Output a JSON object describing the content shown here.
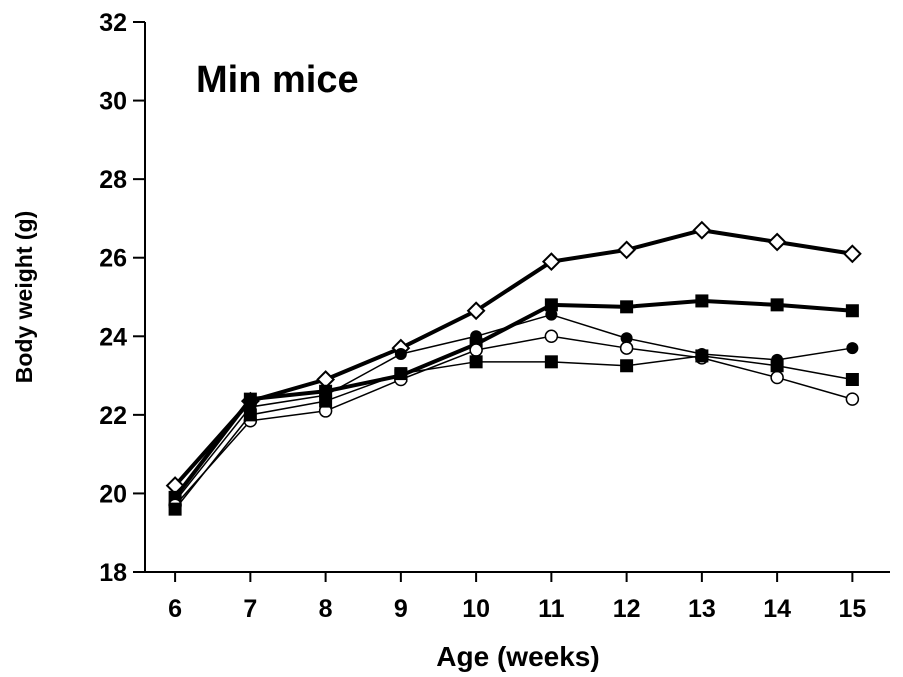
{
  "chart_data": {
    "type": "line",
    "title": "Min mice",
    "xlabel": "Age (weeks)",
    "ylabel": "Body weight (g)",
    "x": [
      6,
      7,
      8,
      9,
      10,
      11,
      12,
      13,
      14,
      15
    ],
    "xlim": [
      5.6,
      15.5
    ],
    "ylim": [
      18,
      32
    ],
    "yticks": [
      18,
      20,
      22,
      24,
      26,
      28,
      30,
      32
    ],
    "grid": false,
    "legend": "none",
    "series": [
      {
        "marker": "open-diamond",
        "line": "thick",
        "values": [
          20.2,
          22.35,
          22.9,
          23.7,
          24.65,
          25.9,
          26.2,
          26.7,
          26.4,
          26.1
        ]
      },
      {
        "marker": "filled-square",
        "line": "thick",
        "values": [
          19.9,
          22.4,
          22.6,
          23.0,
          23.8,
          24.8,
          24.75,
          24.9,
          24.8,
          24.65
        ]
      },
      {
        "marker": "filled-circle",
        "line": "thin",
        "values": [
          19.8,
          22.2,
          22.5,
          23.55,
          24.0,
          24.55,
          23.95,
          23.55,
          23.4,
          23.7
        ]
      },
      {
        "marker": "open-circle",
        "line": "thin",
        "values": [
          19.7,
          21.85,
          22.1,
          22.9,
          23.65,
          24.0,
          23.7,
          23.45,
          22.95,
          22.4
        ]
      },
      {
        "marker": "filled-square",
        "line": "thin",
        "values": [
          19.6,
          22.0,
          22.35,
          23.05,
          23.35,
          23.35,
          23.25,
          23.5,
          23.25,
          22.9
        ]
      }
    ]
  }
}
